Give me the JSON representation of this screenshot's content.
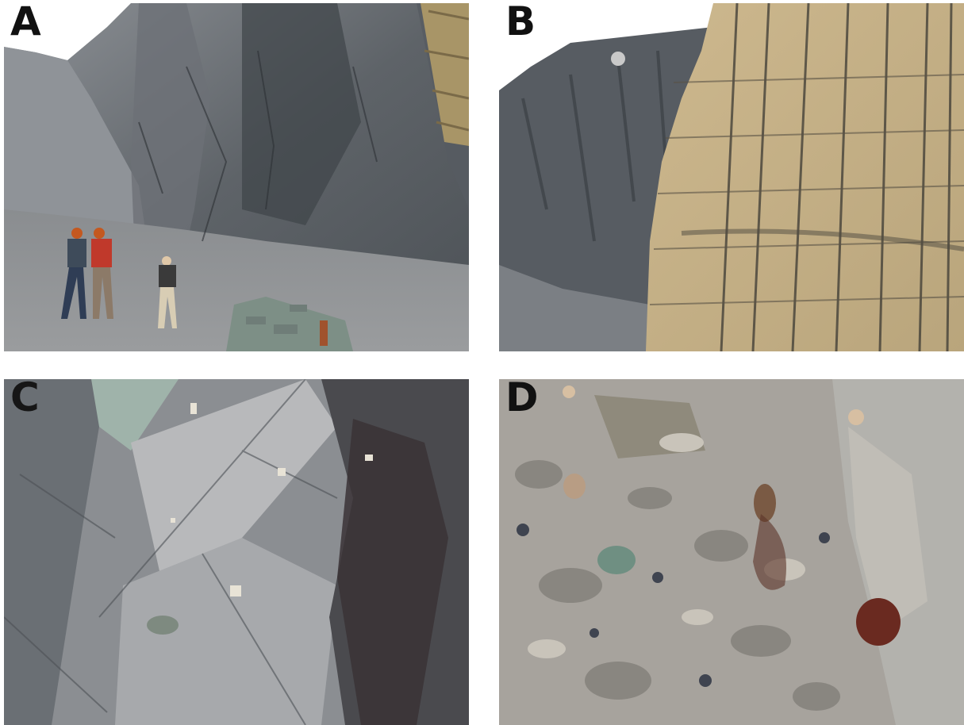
{
  "panels": [
    {
      "id": "A",
      "label": "A"
    },
    {
      "id": "B",
      "label": "B"
    },
    {
      "id": "C",
      "label": "C"
    },
    {
      "id": "D",
      "label": "D"
    }
  ],
  "colors": {
    "grey_rock": "#6f7377",
    "dark_rock": "#3d4146",
    "tan_rock": "#c9b38a",
    "sky": "#ffffff",
    "reddish_clast": "#6a2a20",
    "green_clast": "#6f8f82"
  }
}
